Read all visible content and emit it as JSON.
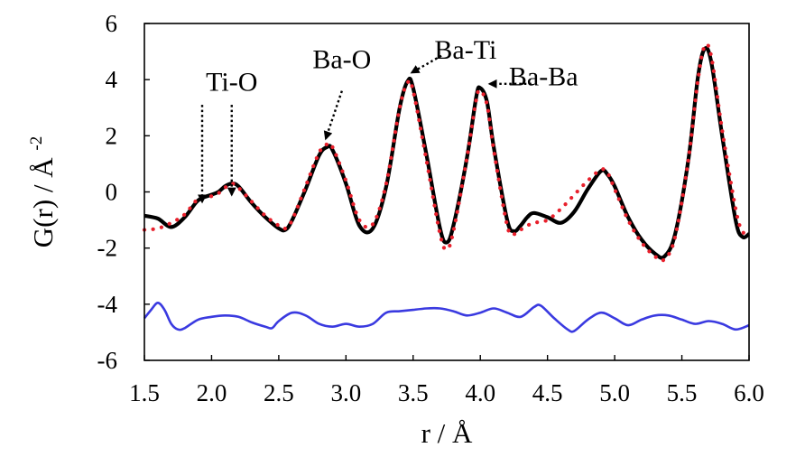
{
  "chart_data": {
    "type": "line",
    "xlabel": "r / Å",
    "ylabel_main": "G(r) / Å",
    "ylabel_sup": "-2",
    "xlim": [
      1.5,
      6.0
    ],
    "ylim": [
      -6,
      6
    ],
    "x_ticks": [
      "1.5",
      "2.0",
      "2.5",
      "3.0",
      "3.5",
      "4.0",
      "4.5",
      "5.0",
      "5.5",
      "6.0"
    ],
    "y_ticks": [
      "6",
      "4",
      "2",
      "0",
      "-2",
      "-4",
      "-6"
    ],
    "grid": false,
    "series": [
      {
        "style": "solid",
        "color": "#000000",
        "points": [
          [
            1.5,
            -0.85
          ],
          [
            1.6,
            -0.95
          ],
          [
            1.7,
            -1.25
          ],
          [
            1.8,
            -0.9
          ],
          [
            1.9,
            -0.3
          ],
          [
            2.0,
            -0.1
          ],
          [
            2.05,
            0.0
          ],
          [
            2.1,
            0.2
          ],
          [
            2.15,
            0.3
          ],
          [
            2.2,
            0.2
          ],
          [
            2.3,
            -0.4
          ],
          [
            2.4,
            -0.9
          ],
          [
            2.5,
            -1.3
          ],
          [
            2.55,
            -1.35
          ],
          [
            2.6,
            -1.0
          ],
          [
            2.7,
            0.1
          ],
          [
            2.8,
            1.3
          ],
          [
            2.86,
            1.6
          ],
          [
            2.9,
            1.5
          ],
          [
            3.0,
            0.3
          ],
          [
            3.1,
            -1.2
          ],
          [
            3.2,
            -1.3
          ],
          [
            3.3,
            0.2
          ],
          [
            3.4,
            3.0
          ],
          [
            3.46,
            3.95
          ],
          [
            3.5,
            3.7
          ],
          [
            3.6,
            1.3
          ],
          [
            3.7,
            -1.3
          ],
          [
            3.75,
            -1.8
          ],
          [
            3.8,
            -1.2
          ],
          [
            3.9,
            1.2
          ],
          [
            3.97,
            3.4
          ],
          [
            4.0,
            3.7
          ],
          [
            4.05,
            3.2
          ],
          [
            4.1,
            1.6
          ],
          [
            4.2,
            -1.0
          ],
          [
            4.25,
            -1.4
          ],
          [
            4.3,
            -1.2
          ],
          [
            4.35,
            -0.9
          ],
          [
            4.4,
            -0.75
          ],
          [
            4.5,
            -0.9
          ],
          [
            4.6,
            -1.1
          ],
          [
            4.7,
            -0.7
          ],
          [
            4.8,
            0.1
          ],
          [
            4.9,
            0.75
          ],
          [
            4.95,
            0.6
          ],
          [
            5.0,
            0.2
          ],
          [
            5.1,
            -0.9
          ],
          [
            5.2,
            -1.7
          ],
          [
            5.3,
            -2.2
          ],
          [
            5.37,
            -2.3
          ],
          [
            5.45,
            -1.5
          ],
          [
            5.55,
            1.2
          ],
          [
            5.62,
            4.1
          ],
          [
            5.67,
            5.1
          ],
          [
            5.72,
            4.6
          ],
          [
            5.8,
            2.0
          ],
          [
            5.9,
            -1.0
          ],
          [
            5.95,
            -1.6
          ],
          [
            6.0,
            -1.5
          ]
        ]
      },
      {
        "style": "dotted",
        "color": "#e8202c",
        "points": [
          [
            1.5,
            -1.35
          ],
          [
            1.6,
            -1.3
          ],
          [
            1.7,
            -1.1
          ],
          [
            1.8,
            -0.8
          ],
          [
            1.9,
            -0.25
          ],
          [
            2.0,
            -0.15
          ],
          [
            2.05,
            -0.05
          ],
          [
            2.1,
            0.15
          ],
          [
            2.15,
            0.3
          ],
          [
            2.2,
            0.15
          ],
          [
            2.3,
            -0.35
          ],
          [
            2.4,
            -0.85
          ],
          [
            2.5,
            -1.2
          ],
          [
            2.55,
            -1.3
          ],
          [
            2.6,
            -1.0
          ],
          [
            2.7,
            0.2
          ],
          [
            2.8,
            1.4
          ],
          [
            2.86,
            1.7
          ],
          [
            2.9,
            1.6
          ],
          [
            3.0,
            0.4
          ],
          [
            3.1,
            -1.0
          ],
          [
            3.2,
            -1.15
          ],
          [
            3.3,
            0.3
          ],
          [
            3.4,
            3.0
          ],
          [
            3.46,
            3.9
          ],
          [
            3.5,
            3.6
          ],
          [
            3.6,
            1.1
          ],
          [
            3.7,
            -1.5
          ],
          [
            3.75,
            -2.05
          ],
          [
            3.8,
            -1.4
          ],
          [
            3.9,
            1.2
          ],
          [
            3.97,
            3.3
          ],
          [
            4.0,
            3.6
          ],
          [
            4.05,
            3.1
          ],
          [
            4.1,
            1.5
          ],
          [
            4.2,
            -1.2
          ],
          [
            4.25,
            -1.5
          ],
          [
            4.3,
            -1.35
          ],
          [
            4.35,
            -1.2
          ],
          [
            4.4,
            -1.1
          ],
          [
            4.5,
            -1.0
          ],
          [
            4.6,
            -0.6
          ],
          [
            4.7,
            -0.1
          ],
          [
            4.8,
            0.4
          ],
          [
            4.9,
            0.8
          ],
          [
            4.95,
            0.65
          ],
          [
            5.0,
            0.1
          ],
          [
            5.1,
            -1.0
          ],
          [
            5.2,
            -1.8
          ],
          [
            5.3,
            -2.3
          ],
          [
            5.37,
            -2.4
          ],
          [
            5.45,
            -1.6
          ],
          [
            5.55,
            1.2
          ],
          [
            5.62,
            4.0
          ],
          [
            5.67,
            5.2
          ],
          [
            5.72,
            4.8
          ],
          [
            5.8,
            2.2
          ],
          [
            5.9,
            -0.6
          ],
          [
            5.95,
            -1.4
          ],
          [
            6.0,
            -1.5
          ]
        ]
      },
      {
        "style": "solid",
        "color": "#3a3ae0",
        "points": [
          [
            1.5,
            -4.5
          ],
          [
            1.55,
            -4.2
          ],
          [
            1.6,
            -3.95
          ],
          [
            1.65,
            -4.2
          ],
          [
            1.7,
            -4.7
          ],
          [
            1.75,
            -4.9
          ],
          [
            1.8,
            -4.85
          ],
          [
            1.9,
            -4.55
          ],
          [
            2.0,
            -4.45
          ],
          [
            2.1,
            -4.4
          ],
          [
            2.2,
            -4.45
          ],
          [
            2.3,
            -4.65
          ],
          [
            2.4,
            -4.8
          ],
          [
            2.45,
            -4.85
          ],
          [
            2.5,
            -4.6
          ],
          [
            2.6,
            -4.3
          ],
          [
            2.7,
            -4.4
          ],
          [
            2.8,
            -4.7
          ],
          [
            2.9,
            -4.8
          ],
          [
            3.0,
            -4.7
          ],
          [
            3.1,
            -4.8
          ],
          [
            3.2,
            -4.7
          ],
          [
            3.3,
            -4.3
          ],
          [
            3.4,
            -4.25
          ],
          [
            3.5,
            -4.2
          ],
          [
            3.6,
            -4.15
          ],
          [
            3.7,
            -4.15
          ],
          [
            3.8,
            -4.25
          ],
          [
            3.9,
            -4.4
          ],
          [
            4.0,
            -4.3
          ],
          [
            4.1,
            -4.15
          ],
          [
            4.2,
            -4.3
          ],
          [
            4.3,
            -4.45
          ],
          [
            4.4,
            -4.1
          ],
          [
            4.45,
            -4.05
          ],
          [
            4.55,
            -4.5
          ],
          [
            4.65,
            -4.9
          ],
          [
            4.7,
            -4.95
          ],
          [
            4.8,
            -4.55
          ],
          [
            4.9,
            -4.3
          ],
          [
            5.0,
            -4.5
          ],
          [
            5.1,
            -4.75
          ],
          [
            5.2,
            -4.55
          ],
          [
            5.3,
            -4.4
          ],
          [
            5.4,
            -4.4
          ],
          [
            5.5,
            -4.55
          ],
          [
            5.6,
            -4.7
          ],
          [
            5.7,
            -4.6
          ],
          [
            5.8,
            -4.7
          ],
          [
            5.9,
            -4.9
          ],
          [
            6.0,
            -4.75
          ]
        ]
      }
    ],
    "annotations": [
      {
        "text": "Ti-O",
        "label_at": [
          2.15,
          3.6
        ],
        "arrows": [
          {
            "from": [
              1.93,
              3.1
            ],
            "to": [
              1.93,
              -0.35
            ]
          },
          {
            "from": [
              2.15,
              3.1
            ],
            "to": [
              2.15,
              -0.1
            ]
          }
        ]
      },
      {
        "text": "Ba-O",
        "label_at": [
          2.97,
          4.4
        ],
        "arrows": [
          {
            "from": [
              2.97,
              3.6
            ],
            "to": [
              2.85,
              1.9
            ]
          }
        ]
      },
      {
        "text": "Ba-Ti",
        "label_at": [
          3.89,
          4.75
        ],
        "arrows": [
          {
            "from": [
              3.71,
              4.85
            ],
            "to": [
              3.49,
              4.25
            ]
          }
        ]
      },
      {
        "text": "Ba-Ba",
        "label_at": [
          4.47,
          3.8
        ],
        "arrows": [
          {
            "from": [
              4.38,
              3.85
            ],
            "to": [
              4.07,
              3.85
            ]
          }
        ]
      }
    ]
  }
}
